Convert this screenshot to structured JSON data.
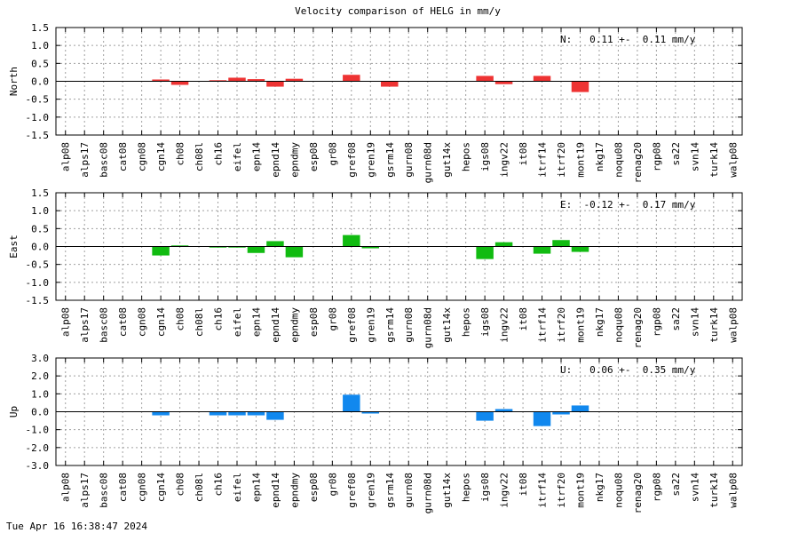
{
  "title": "Velocity comparison of HELG in mm/y",
  "timestamp": "Tue Apr 16 16:38:47 2024",
  "chart_data": {
    "type": "bar",
    "categories": [
      "alp08",
      "alps17",
      "basc08",
      "cat08",
      "cgn08",
      "cgn14",
      "ch08",
      "ch08l",
      "ch16",
      "eifel",
      "epn14",
      "epnd14",
      "epndmy",
      "esp08",
      "gr08",
      "gref08",
      "gren19",
      "gsrm14",
      "gurn08",
      "gurn08d",
      "gut14x",
      "hepos",
      "igs08",
      "ingv22",
      "it08",
      "itrf14",
      "itrf20",
      "mont19",
      "nkg17",
      "noqu08",
      "renag20",
      "rgp08",
      "sa22",
      "svn14",
      "turk14",
      "walp08"
    ],
    "panels": [
      {
        "ylabel": "North",
        "color": "#ee3333",
        "ylim": [
          -1.5,
          1.5
        ],
        "yticks": [
          "-1.5",
          "-1.0",
          "-0.5",
          "0.0",
          "0.5",
          "1.0",
          "1.5"
        ],
        "annotation": "N:   0.11 +-  0.11 mm/y",
        "values": [
          null,
          null,
          null,
          null,
          null,
          0.05,
          -0.1,
          null,
          0.03,
          0.1,
          0.06,
          -0.15,
          0.07,
          null,
          null,
          0.18,
          null,
          -0.15,
          null,
          null,
          null,
          null,
          0.15,
          -0.08,
          null,
          0.15,
          null,
          -0.3,
          null,
          null,
          null,
          null,
          null,
          null,
          null,
          null
        ]
      },
      {
        "ylabel": "East",
        "color": "#11bb11",
        "ylim": [
          -1.5,
          1.5
        ],
        "yticks": [
          "-1.5",
          "-1.0",
          "-0.5",
          "0.0",
          "0.5",
          "1.0",
          "1.5"
        ],
        "annotation": "E:  -0.12 +-  0.17 mm/y",
        "values": [
          null,
          null,
          null,
          null,
          null,
          -0.25,
          0.03,
          null,
          -0.03,
          -0.03,
          -0.18,
          0.15,
          -0.3,
          null,
          null,
          0.32,
          -0.05,
          null,
          null,
          null,
          null,
          null,
          -0.35,
          0.12,
          null,
          -0.2,
          0.18,
          -0.15,
          null,
          null,
          null,
          null,
          null,
          null,
          null,
          null
        ]
      },
      {
        "ylabel": "Up",
        "color": "#1188ee",
        "ylim": [
          -3.0,
          3.0
        ],
        "yticks": [
          "-3.0",
          "-2.0",
          "-1.0",
          "0.0",
          "1.0",
          "2.0",
          "3.0"
        ],
        "annotation": "U:   0.06 +-  0.35 mm/y",
        "values": [
          null,
          null,
          null,
          null,
          null,
          -0.2,
          null,
          null,
          -0.2,
          -0.2,
          -0.2,
          -0.45,
          null,
          null,
          null,
          0.95,
          -0.1,
          null,
          null,
          null,
          null,
          null,
          -0.5,
          0.15,
          null,
          -0.8,
          -0.15,
          0.35,
          null,
          null,
          null,
          null,
          null,
          null,
          null,
          null
        ]
      }
    ]
  }
}
